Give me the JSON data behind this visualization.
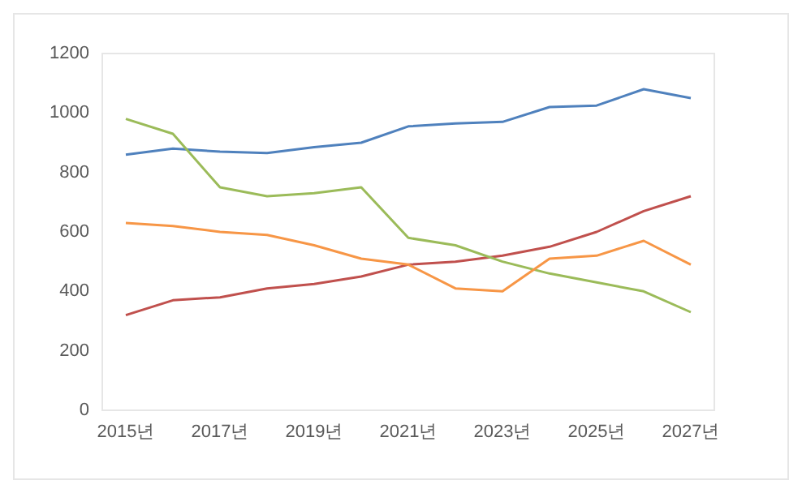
{
  "chart_data": {
    "type": "line",
    "categories": [
      "2015년",
      null,
      "2017년",
      null,
      "2019년",
      null,
      "2021년",
      null,
      "2023년",
      null,
      "2025년",
      null,
      "2027년"
    ],
    "ylim": [
      0,
      1200
    ],
    "yticks": [
      0,
      200,
      400,
      600,
      800,
      1000,
      1200
    ],
    "grid": false,
    "marker": "none",
    "series": [
      {
        "color": "#4f81bd",
        "values": [
          860,
          880,
          870,
          865,
          885,
          900,
          955,
          965,
          970,
          1020,
          1025,
          1080,
          1050
        ]
      },
      {
        "color": "#c0504d",
        "values": [
          320,
          370,
          380,
          410,
          425,
          450,
          490,
          500,
          520,
          550,
          600,
          670,
          720
        ]
      },
      {
        "color": "#9bbb59",
        "values": [
          980,
          930,
          750,
          720,
          730,
          750,
          580,
          555,
          500,
          460,
          430,
          400,
          330
        ]
      },
      {
        "color": "#f79646",
        "values": [
          630,
          620,
          600,
          590,
          555,
          510,
          490,
          410,
          400,
          510,
          520,
          570,
          490
        ]
      }
    ]
  }
}
